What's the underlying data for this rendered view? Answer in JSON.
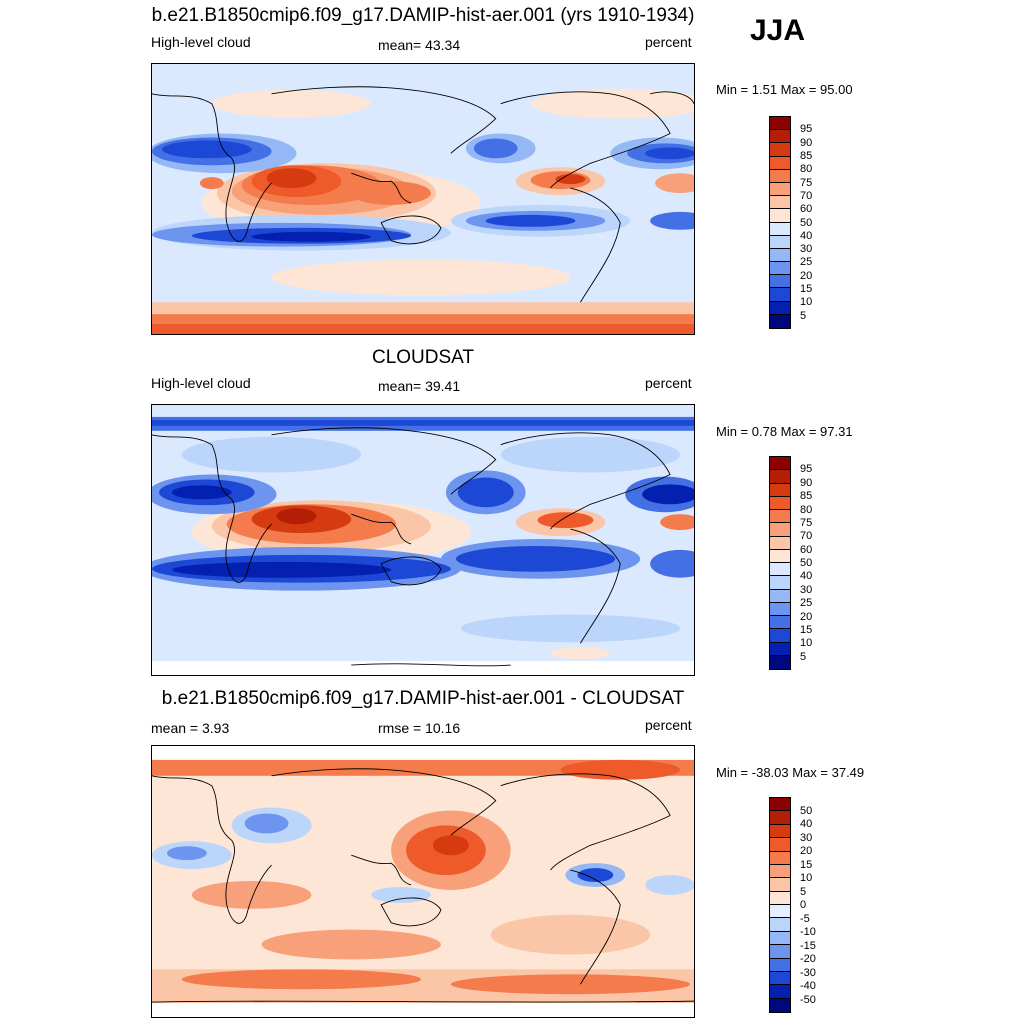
{
  "season": "JJA",
  "panels": [
    {
      "title": "b.e21.B1850cmip6.f09_g17.DAMIP-hist-aer.001 (yrs 1910-1934)",
      "left_label": "High-level cloud",
      "center_label": "mean=  43.34",
      "right_label": "percent",
      "minmax": "Min =   1.51 Max =  95.00",
      "colorbar_ticks": [
        "95",
        "90",
        "85",
        "80",
        "75",
        "70",
        "60",
        "50",
        "40",
        "30",
        "25",
        "20",
        "15",
        "10",
        "5"
      ]
    },
    {
      "title": "CLOUDSAT",
      "left_label": "High-level cloud",
      "center_label": "mean=  39.41",
      "right_label": "percent",
      "minmax": "Min =   0.78 Max =  97.31",
      "colorbar_ticks": [
        "95",
        "90",
        "85",
        "80",
        "75",
        "70",
        "60",
        "50",
        "40",
        "30",
        "25",
        "20",
        "15",
        "10",
        "5"
      ]
    },
    {
      "title": "b.e21.B1850cmip6.f09_g17.DAMIP-hist-aer.001 - CLOUDSAT",
      "left_label": "mean =   3.93",
      "center_label": "rmse =  10.16",
      "right_label": "percent",
      "minmax": "Min = -38.03 Max =  37.49",
      "colorbar_ticks": [
        "50",
        "40",
        "30",
        "20",
        "15",
        "10",
        "5",
        "0",
        "-5",
        "-10",
        "-15",
        "-20",
        "-30",
        "-40",
        "-50"
      ]
    }
  ],
  "colors": {
    "seq": [
      "#8b0000",
      "#b41d06",
      "#d63a10",
      "#ee5a2a",
      "#f47c4c",
      "#f8a07a",
      "#fbc5a8",
      "#fde6d6",
      "#dbe9ff",
      "#bcd5fb",
      "#94b8f5",
      "#6d95ef",
      "#4470e6",
      "#1d48d6",
      "#0420b0",
      "#00087e"
    ],
    "diverging": [
      "#8b0000",
      "#b41d06",
      "#d63a10",
      "#ee5a2a",
      "#f47c4c",
      "#f8a07a",
      "#fbc5a8",
      "#fde6d6",
      "#e6efff",
      "#bcd5fb",
      "#94b8f5",
      "#6d95ef",
      "#4470e6",
      "#1d48d6",
      "#0420b0",
      "#00087e"
    ]
  }
}
